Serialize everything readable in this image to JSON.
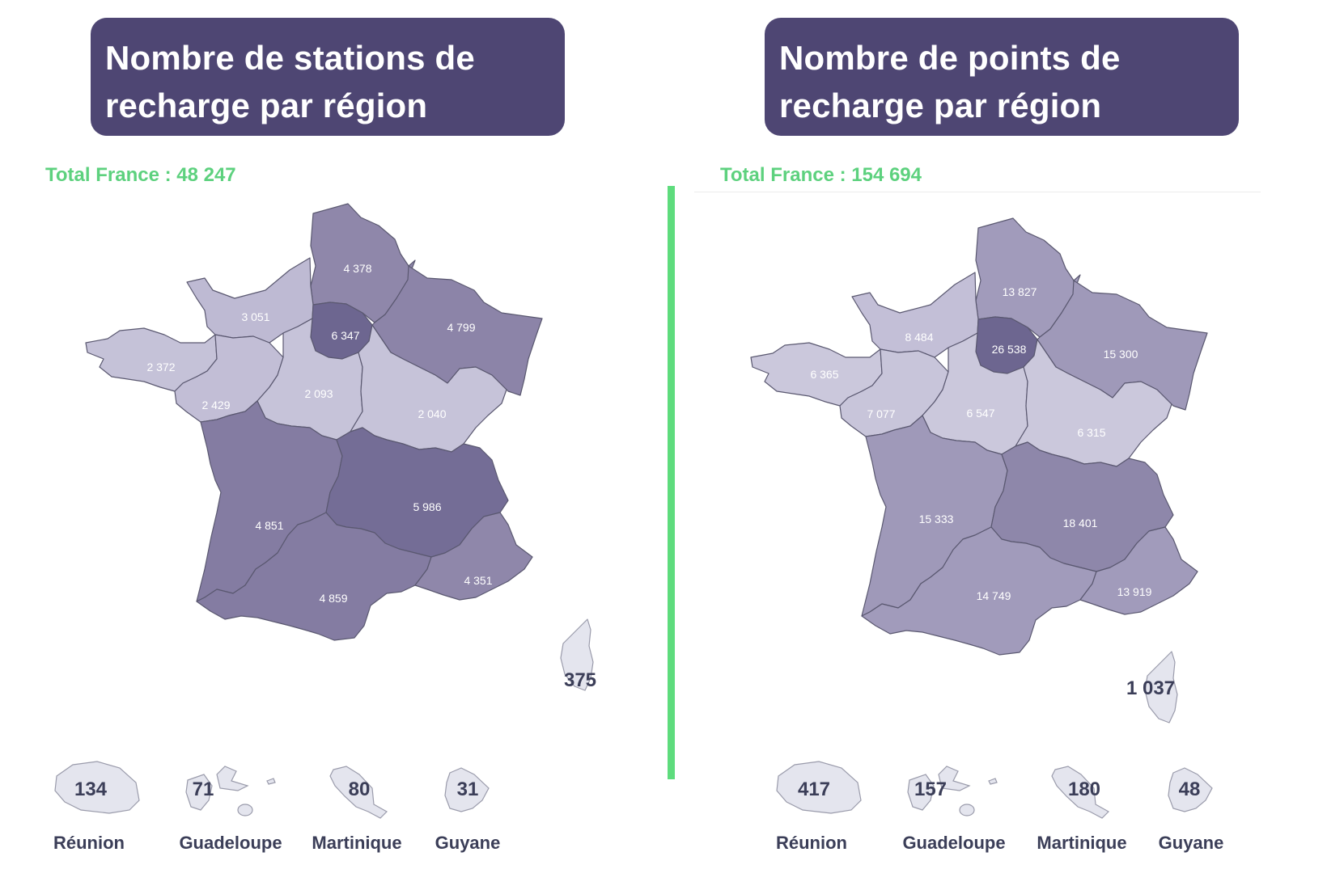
{
  "left": {
    "title_line1": "Nombre de stations de",
    "title_line2": "recharge par région",
    "total": "Total France : 48 247",
    "regions": {
      "hauts_de_france": "4 378",
      "normandie": "3 051",
      "ile_de_france": "6 347",
      "grand_est": "4 799",
      "bretagne": "2 372",
      "pays_de_la_loire": "2 429",
      "centre_val_de_loire": "2 093",
      "bourgogne_franche_comte": "2 040",
      "nouvelle_aquitaine": "4 851",
      "auvergne_rhone_alpes": "5 986",
      "occitanie": "4 859",
      "provence_alpes_cote_azur": "4 351",
      "corse": "375"
    },
    "overseas": {
      "reunion": "134",
      "guadeloupe": "71",
      "martinique": "80",
      "guyane": "31"
    }
  },
  "right": {
    "title_line1": "Nombre de points de",
    "title_line2": "recharge par région",
    "total": "Total France : 154 694",
    "regions": {
      "hauts_de_france": "13 827",
      "normandie": "8 484",
      "ile_de_france": "26 538",
      "grand_est": "15 300",
      "bretagne": "6 365",
      "pays_de_la_loire": "7 077",
      "centre_val_de_loire": "6 547",
      "bourgogne_franche_comte": "6 315",
      "nouvelle_aquitaine": "15 333",
      "auvergne_rhone_alpes": "18 401",
      "occitanie": "14 749",
      "provence_alpes_cote_azur": "13 919",
      "corse": "1 037"
    },
    "overseas": {
      "reunion": "417",
      "guadeloupe": "157",
      "martinique": "180",
      "guyane": "48"
    }
  },
  "overseas_names": {
    "reunion": "Réunion",
    "guadeloupe": "Guadeloupe",
    "martinique": "Martinique",
    "guyane": "Guyane"
  },
  "colors": {
    "title_bg": "#4e4673",
    "total_text": "#5dd17e",
    "divider": "#5edc7d",
    "island_fill": "#e4e5ee",
    "label_dark": "#3b3e58",
    "left_regions": {
      "hauts_de_france": "#8f87aa",
      "normandie": "#bebad3",
      "ile_de_france": "#6d6690",
      "grand_est": "#8c84a8",
      "bretagne": "#c5c2d8",
      "pays_de_la_loire": "#c2bed6",
      "centre_val_de_loire": "#c6c3d9",
      "bourgogne_franche_comte": "#c6c3d9",
      "nouvelle_aquitaine": "#847ca2",
      "auvergne_rhone_alpes": "#746d96",
      "occitanie": "#847ca2",
      "provence_alpes_cote_azur": "#8f87aa",
      "corse": "#e4e5ee"
    },
    "right_regions": {
      "hauts_de_france": "#a19bbb",
      "normandie": "#c3bfd7",
      "ile_de_france": "#6d6690",
      "grand_est": "#9f99b9",
      "bretagne": "#cbc8dc",
      "pays_de_la_loire": "#c8c5da",
      "centre_val_de_loire": "#cbc8dc",
      "bourgogne_franche_comte": "#cbc8dc",
      "nouvelle_aquitaine": "#9f99b9",
      "auvergne_rhone_alpes": "#8e87aa",
      "occitanie": "#a19bbb",
      "provence_alpes_cote_azur": "#a19bbb",
      "corse": "#e4e5ee"
    }
  }
}
